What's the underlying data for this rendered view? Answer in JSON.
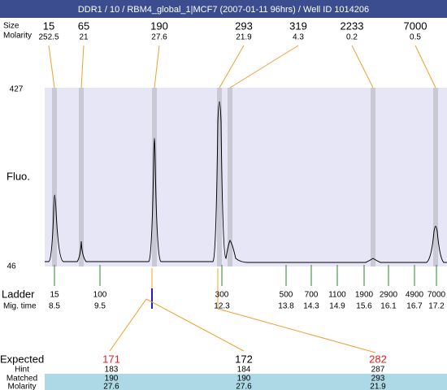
{
  "header": {
    "title": "DDR1 / 10 / RBM4_global_1|MCF7 (2007-01-11 96hrs) / Well ID 1014206"
  },
  "peaks": {
    "size_label": "Size",
    "molarity_label": "Molarity",
    "items": [
      {
        "size": "15",
        "molarity": "252.5"
      },
      {
        "size": "65",
        "molarity": "21"
      },
      {
        "size": "190",
        "molarity": "27.6"
      },
      {
        "size": "293",
        "molarity": "21.9"
      },
      {
        "size": "319",
        "molarity": "4.3"
      },
      {
        "size": "2233",
        "molarity": "0.2"
      },
      {
        "size": "7000",
        "molarity": "0.5"
      }
    ]
  },
  "y_axis": {
    "label": "Fluo.",
    "top": "427",
    "bottom": "46"
  },
  "ladder": {
    "label": "Ladder",
    "time_label": "Mig. time",
    "items": [
      {
        "size": "15",
        "time": "8.5"
      },
      {
        "size": "100",
        "time": "9.5"
      },
      {
        "size": "300",
        "time": "12.3"
      },
      {
        "size": "500",
        "time": "13.8"
      },
      {
        "size": "700",
        "time": "14.3"
      },
      {
        "size": "1100",
        "time": "14.9"
      },
      {
        "size": "1900",
        "time": "15.6"
      },
      {
        "size": "2900",
        "time": "16.1"
      },
      {
        "size": "4900",
        "time": "16.7"
      },
      {
        "size": "7000",
        "time": "17.2"
      }
    ]
  },
  "expected": {
    "label": "Expected",
    "hint_label": "Hint",
    "matched_label": "Matched",
    "molarity_label": "Molarity",
    "columns": [
      {
        "expected": "171",
        "hint": "183",
        "matched": "190",
        "molarity": "27.6"
      },
      {
        "expected": "172",
        "hint": "184",
        "matched": "190",
        "molarity": "27.6"
      },
      {
        "expected": "282",
        "hint": "287",
        "matched": "293",
        "molarity": "21.9"
      }
    ]
  }
}
